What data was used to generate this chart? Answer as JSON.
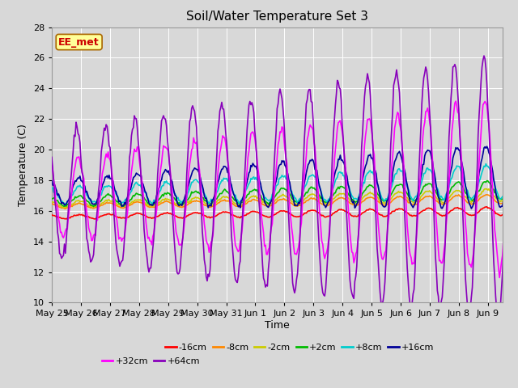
{
  "title": "Soil/Water Temperature Set 3",
  "xlabel": "Time",
  "ylabel": "Temperature (C)",
  "ylim": [
    10,
    28
  ],
  "x_tick_labels": [
    "May 25",
    "May 26",
    "May 27",
    "May 28",
    "May 29",
    "May 30",
    "May 31",
    "Jun 1",
    "Jun 2",
    "Jun 3",
    "Jun 4",
    "Jun 5",
    "Jun 6",
    "Jun 7",
    "Jun 8",
    "Jun 9"
  ],
  "background_color": "#d8d8d8",
  "plot_bg_color": "#d8d8d8",
  "annotation_text": "EE_met",
  "annotation_box_color": "#ffff99",
  "annotation_border_color": "#aa6600",
  "annotation_text_color": "#cc0000",
  "series": [
    {
      "label": "-16cm",
      "color": "#ff0000",
      "linewidth": 1.2
    },
    {
      "label": "-8cm",
      "color": "#ff8800",
      "linewidth": 1.2
    },
    {
      "label": "-2cm",
      "color": "#cccc00",
      "linewidth": 1.2
    },
    {
      "label": "+2cm",
      "color": "#00bb00",
      "linewidth": 1.2
    },
    {
      "label": "+8cm",
      "color": "#00cccc",
      "linewidth": 1.2
    },
    {
      "label": "+16cm",
      "color": "#000099",
      "linewidth": 1.2
    },
    {
      "label": "+32cm",
      "color": "#ff00ff",
      "linewidth": 1.2
    },
    {
      "label": "+64cm",
      "color": "#8800bb",
      "linewidth": 1.2
    }
  ],
  "yticks": [
    10,
    12,
    14,
    16,
    18,
    20,
    22,
    24,
    26,
    28
  ]
}
